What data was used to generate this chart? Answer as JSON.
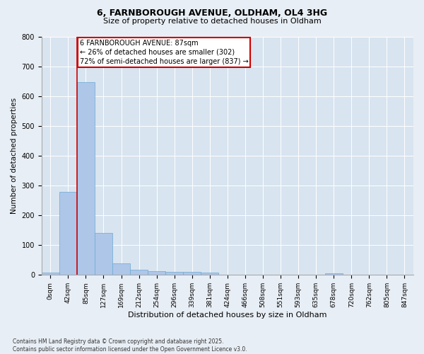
{
  "title_line1": "6, FARNBOROUGH AVENUE, OLDHAM, OL4 3HG",
  "title_line2": "Size of property relative to detached houses in Oldham",
  "xlabel": "Distribution of detached houses by size in Oldham",
  "ylabel": "Number of detached properties",
  "footnote": "Contains HM Land Registry data © Crown copyright and database right 2025.\nContains public sector information licensed under the Open Government Licence v3.0.",
  "bin_labels": [
    "0sqm",
    "42sqm",
    "85sqm",
    "127sqm",
    "169sqm",
    "212sqm",
    "254sqm",
    "296sqm",
    "339sqm",
    "381sqm",
    "424sqm",
    "466sqm",
    "508sqm",
    "551sqm",
    "593sqm",
    "635sqm",
    "678sqm",
    "720sqm",
    "762sqm",
    "805sqm",
    "847sqm"
  ],
  "bar_values": [
    7,
    278,
    648,
    142,
    38,
    18,
    13,
    11,
    11,
    7,
    2,
    0,
    0,
    0,
    0,
    0,
    5,
    0,
    0,
    0,
    0
  ],
  "bar_color": "#aec6e8",
  "bar_edge_color": "#6aaad4",
  "marker_bin": 2,
  "marker_color": "#cc0000",
  "annotation_text": "6 FARNBOROUGH AVENUE: 87sqm\n← 26% of detached houses are smaller (302)\n72% of semi-detached houses are larger (837) →",
  "annotation_box_color": "#cc0000",
  "background_color": "#e8eef5",
  "plot_bg_color": "#d8e4f0",
  "ylim": [
    0,
    800
  ],
  "yticks": [
    0,
    100,
    200,
    300,
    400,
    500,
    600,
    700,
    800
  ],
  "title_fontsize": 9,
  "subtitle_fontsize": 8,
  "ylabel_fontsize": 7.5,
  "xlabel_fontsize": 8,
  "tick_fontsize": 6.5,
  "annotation_fontsize": 7,
  "footnote_fontsize": 5.5
}
